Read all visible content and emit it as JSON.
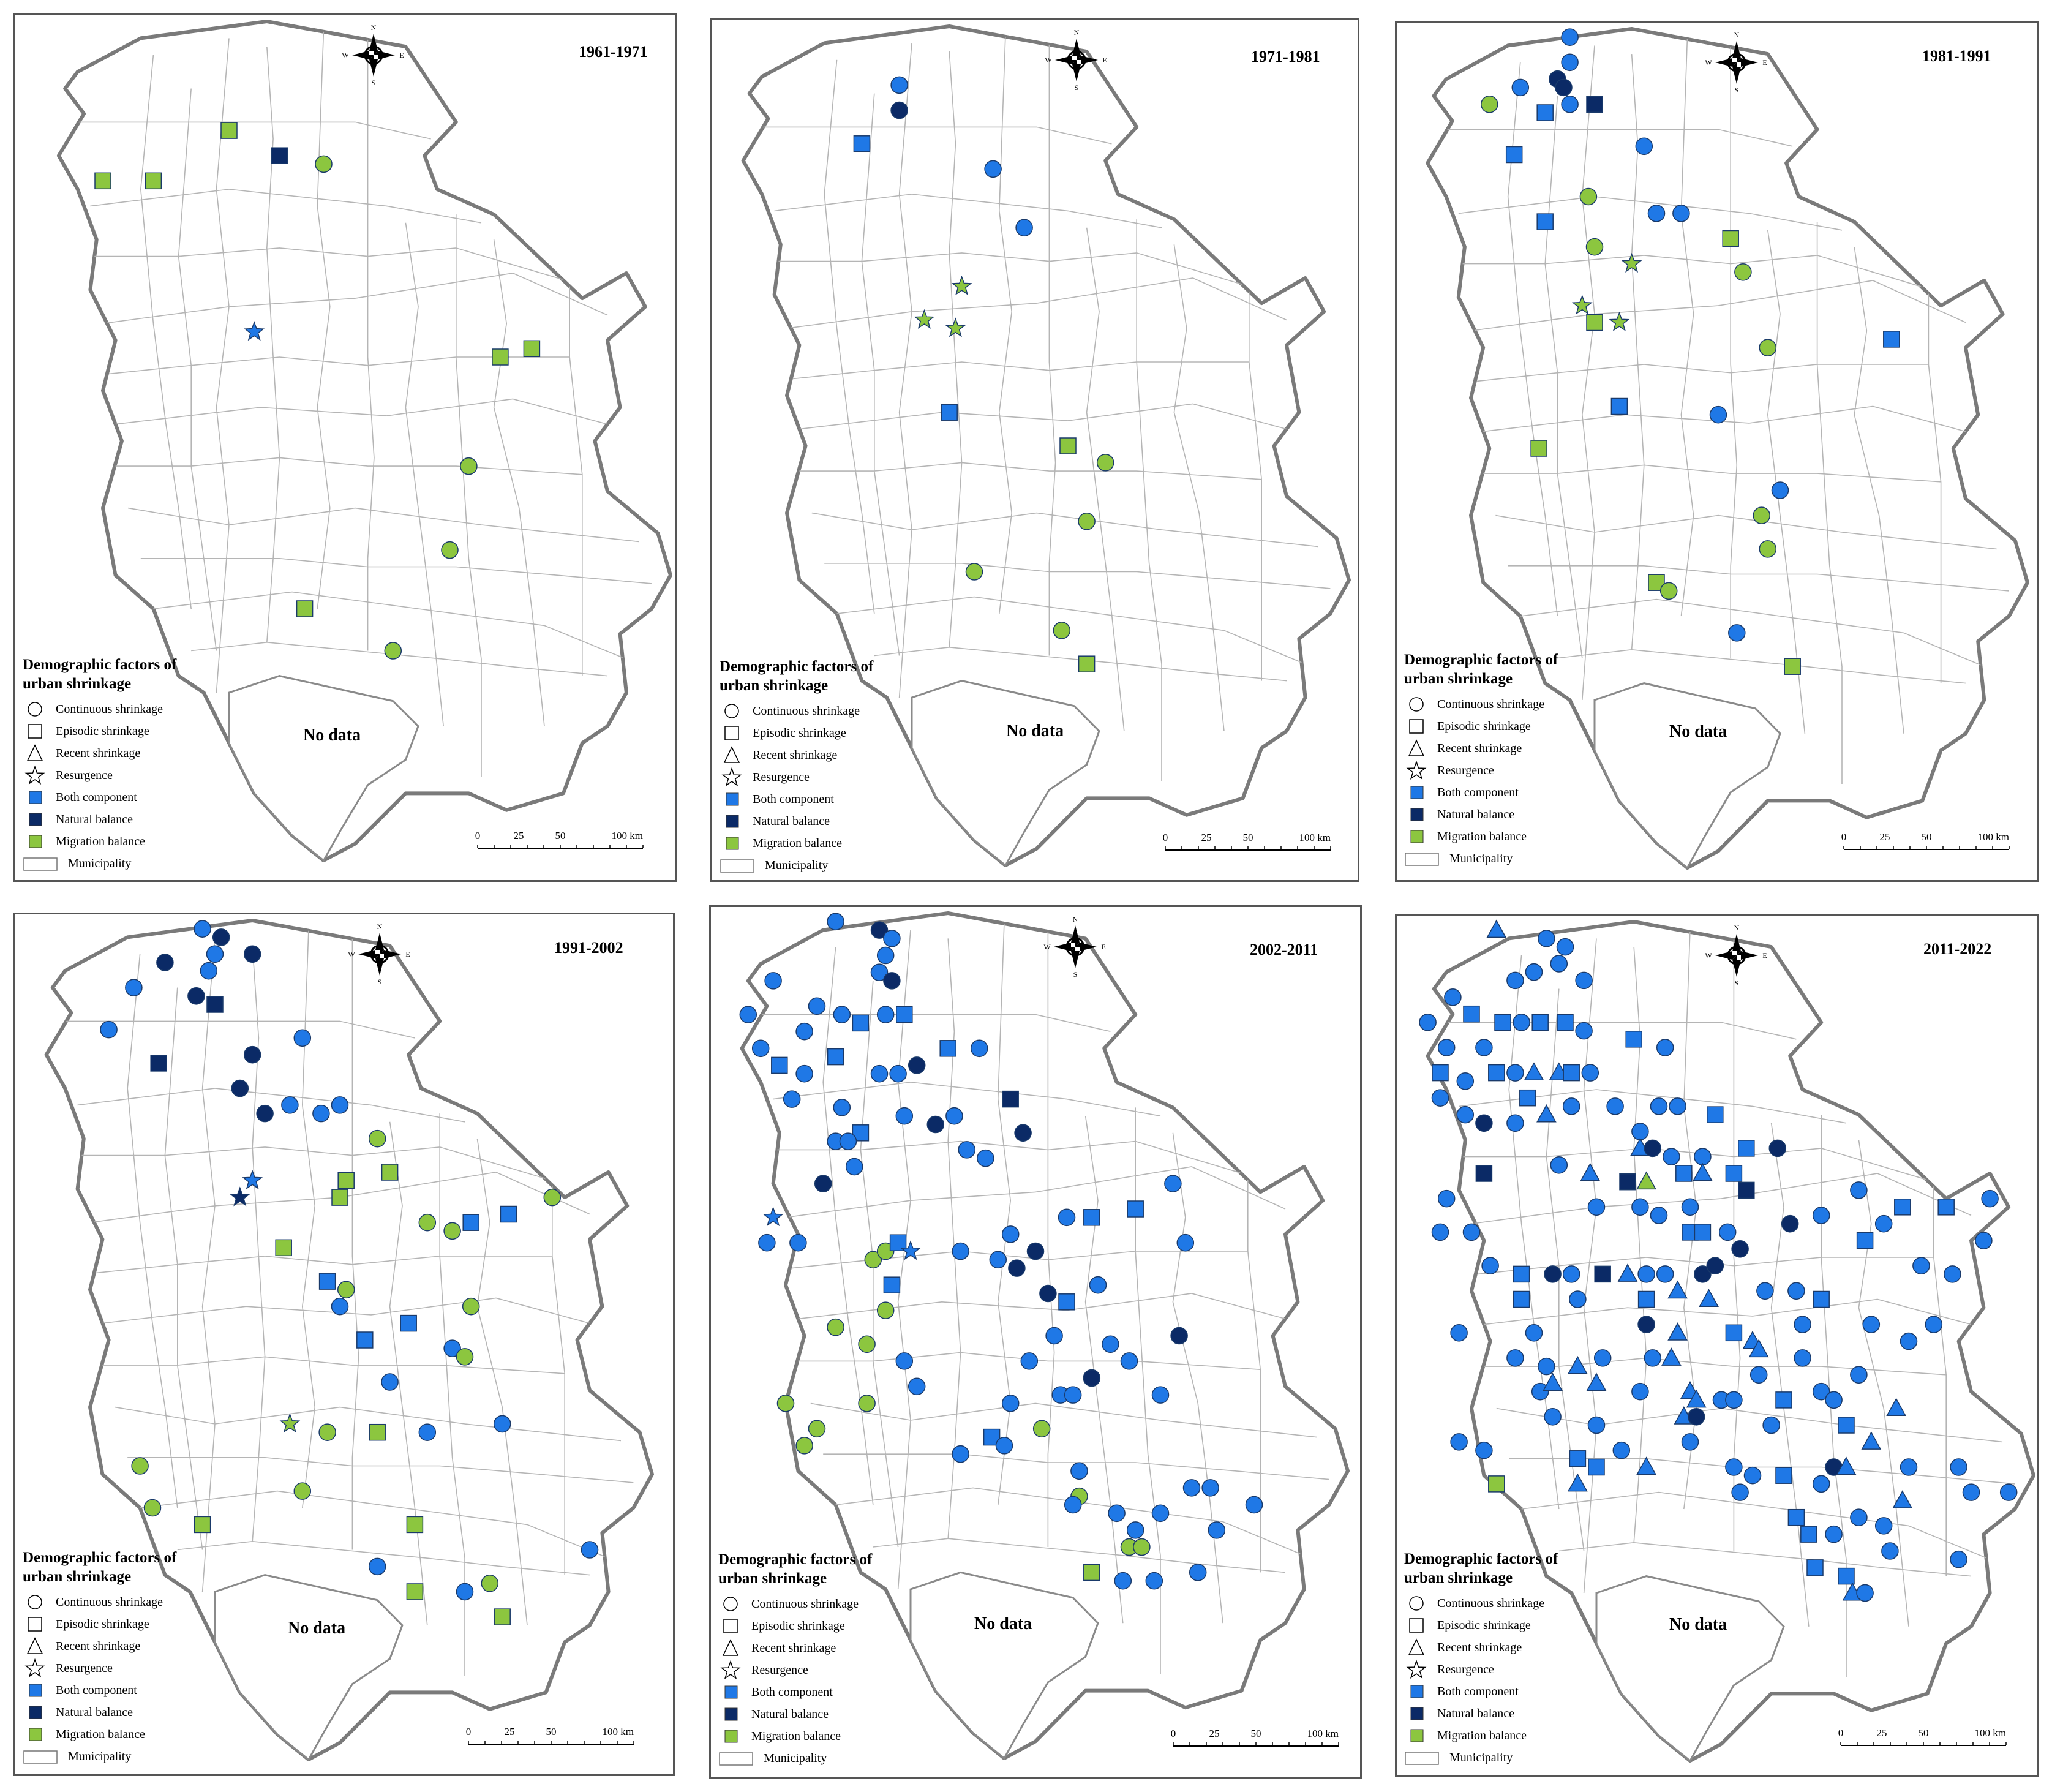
{
  "no_data_label": "No data",
  "legend": {
    "title": "Demographic factors of urban shrinkage",
    "items": [
      {
        "label": "Continuous shrinkage",
        "symbol": "circle-outline"
      },
      {
        "label": "Episodic shrinkage",
        "symbol": "square-outline"
      },
      {
        "label": "Recent shrinkage",
        "symbol": "triangle-outline"
      },
      {
        "label": "Resurgence",
        "symbol": "star-outline"
      },
      {
        "label": "Both component",
        "symbol": "square-fill",
        "color": "#1f78e6"
      },
      {
        "label": "Natural balance",
        "symbol": "square-fill",
        "color": "#0b2a66"
      },
      {
        "label": "Migration balance",
        "symbol": "square-fill",
        "color": "#8cc63f"
      },
      {
        "label": "Municipality",
        "symbol": "rect-outline"
      }
    ]
  },
  "compass": {
    "n": "N",
    "s": "S",
    "w": "W",
    "e": "E"
  },
  "scale": {
    "ticks": [
      "0",
      "25",
      "50",
      "100 km"
    ]
  },
  "colors": {
    "both": "#1f78e6",
    "natural": "#0b2a66",
    "migration": "#8cc63f",
    "outline": "#000000"
  },
  "panels": [
    {
      "period": "1961-1971"
    },
    {
      "period": "1971-1981"
    },
    {
      "period": "1981-1991"
    },
    {
      "period": "1991-2002"
    },
    {
      "period": "2002-2011"
    },
    {
      "period": "2011-2022"
    }
  ]
}
